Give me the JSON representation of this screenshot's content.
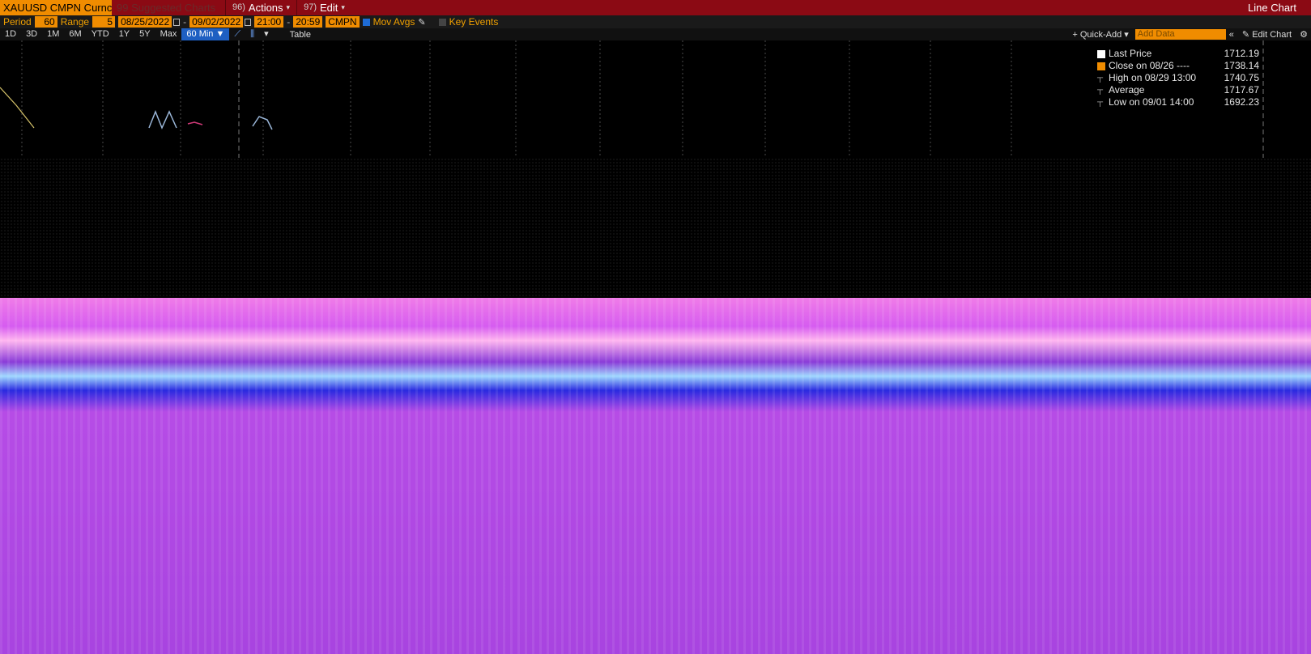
{
  "titlebar": {
    "ticker": "XAUUSD CMPN Curncy",
    "suggested": "99 Suggested Charts",
    "actions_num": "96)",
    "actions_label": "Actions",
    "edit_num": "97)",
    "edit_label": "Edit",
    "chart_type": "Line Chart"
  },
  "params": {
    "period_label": "Period",
    "period_value": "60",
    "range_label": "Range",
    "range_value": "5",
    "start_date": "08/25/2022",
    "end_date": "09/02/2022",
    "start_time": "21:00",
    "end_time": "20:59",
    "source": "CMPN",
    "mov_avgs_label": "Mov Avgs",
    "key_events_label": "Key Events"
  },
  "toolbar": {
    "periods": [
      "1D",
      "3D",
      "1M",
      "6M",
      "YTD",
      "1Y",
      "5Y",
      "Max"
    ],
    "interval": "60 Min ▼",
    "table_label": "Table",
    "quick_add_label": "+ Quick-Add ▾",
    "add_data_placeholder": "Add Data",
    "edit_chart_label": "Edit Chart"
  },
  "legend": {
    "items": [
      {
        "label": "Last Price",
        "value": "1712.19",
        "color": "#ffffff"
      },
      {
        "label": "Close on 08/26 ----",
        "value": "1738.14",
        "color": "#f08c00"
      },
      {
        "label": "High on 08/29 13:00",
        "value": "1740.75",
        "color": ""
      },
      {
        "label": "Average",
        "value": "1717.67",
        "color": ""
      },
      {
        "label": "Low on 09/01 14:00",
        "value": "1692.23",
        "color": ""
      }
    ]
  },
  "colors": {
    "titlebar_bg": "#8b0a14",
    "accent_orange": "#f08c00",
    "active_blue": "#1e5fc2"
  }
}
